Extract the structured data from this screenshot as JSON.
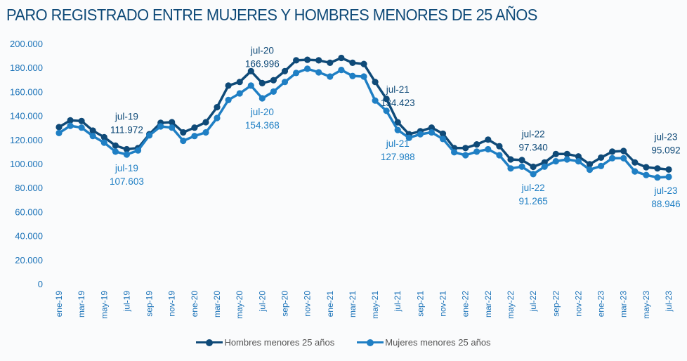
{
  "chart_data": {
    "type": "line",
    "title": "PARO REGISTRADO ENTRE MUJERES Y HOMBRES MENORES DE 25 AÑOS",
    "xlabel": "",
    "ylabel": "",
    "ylim": [
      0,
      200000
    ],
    "yticks": [
      0,
      20000,
      40000,
      60000,
      80000,
      100000,
      120000,
      140000,
      160000,
      180000,
      200000
    ],
    "ytick_labels": [
      "0",
      "20.000",
      "40.000",
      "60.000",
      "80.000",
      "100.000",
      "120.000",
      "140.000",
      "160.000",
      "180.000",
      "200.000"
    ],
    "grid": false,
    "legend_position": "bottom",
    "x": [
      "ene-19",
      "feb-19",
      "mar-19",
      "abr-19",
      "may-19",
      "jun-19",
      "jul-19",
      "ago-19",
      "sep-19",
      "oct-19",
      "nov-19",
      "dic-19",
      "ene-20",
      "feb-20",
      "mar-20",
      "abr-20",
      "may-20",
      "jun-20",
      "jul-20",
      "ago-20",
      "sep-20",
      "oct-20",
      "nov-20",
      "dic-20",
      "ene-21",
      "feb-21",
      "mar-21",
      "abr-21",
      "may-21",
      "jun-21",
      "jul-21",
      "ago-21",
      "sep-21",
      "oct-21",
      "nov-21",
      "dic-21",
      "ene-22",
      "feb-22",
      "mar-22",
      "abr-22",
      "may-22",
      "jun-22",
      "jul-22",
      "ago-22",
      "sep-22",
      "oct-22",
      "nov-22",
      "dic-22",
      "ene-23",
      "feb-23",
      "mar-23",
      "abr-23",
      "may-23",
      "jun-23",
      "jul-23"
    ],
    "xtick_labels": [
      "ene-19",
      "mar-19",
      "may-19",
      "jul-19",
      "sep-19",
      "nov-19",
      "ene-20",
      "mar-20",
      "may-20",
      "jul-20",
      "sep-20",
      "nov-20",
      "ene-21",
      "mar-21",
      "may-21",
      "jul-21",
      "sep-21",
      "nov-21",
      "ene-22",
      "mar-22",
      "may-22",
      "jul-22",
      "sep-22",
      "nov-22",
      "ene-23",
      "mar-23",
      "may-23",
      "jul-23"
    ],
    "series": [
      {
        "name": "Hombres menores 25 años",
        "color": "#0f4a78",
        "values": [
          130400,
          136000,
          135500,
          127500,
          122000,
          115000,
          111972,
          113000,
          124500,
          134000,
          134500,
          126000,
          130000,
          134500,
          147000,
          165000,
          168000,
          177000,
          166996,
          169500,
          177000,
          186000,
          186500,
          186000,
          184000,
          188000,
          184000,
          183000,
          168000,
          154000,
          134423,
          124500,
          127000,
          130000,
          125000,
          113000,
          113000,
          116000,
          120000,
          114500,
          103500,
          103000,
          97340,
          101000,
          108000,
          108000,
          106000,
          99500,
          105000,
          110000,
          110500,
          101000,
          97000,
          96000,
          95092
        ]
      },
      {
        "name": "Mujeres menores 25 años",
        "color": "#1f7fc4",
        "values": [
          125500,
          131500,
          130000,
          123000,
          117500,
          110000,
          107603,
          111000,
          123500,
          131000,
          130000,
          119000,
          123000,
          126000,
          138000,
          153000,
          158500,
          165000,
          154368,
          160000,
          168000,
          175500,
          179000,
          176000,
          172500,
          178000,
          173000,
          172500,
          152500,
          144000,
          127988,
          121500,
          124500,
          126000,
          120500,
          109500,
          107000,
          110000,
          112000,
          107000,
          96000,
          97500,
          91265,
          97500,
          102000,
          103500,
          102000,
          95000,
          98000,
          104500,
          104500,
          93500,
          90500,
          88500,
          88946
        ]
      }
    ],
    "annotations": [
      {
        "series": 0,
        "x": "jul-19",
        "label_date": "jul-19",
        "label_value": "111.972",
        "pos": "above"
      },
      {
        "series": 1,
        "x": "jul-19",
        "label_date": "jul-19",
        "label_value": "107.603",
        "pos": "below"
      },
      {
        "series": 0,
        "x": "jul-20",
        "label_date": "jul-20",
        "label_value": "166.996",
        "pos": "above"
      },
      {
        "series": 1,
        "x": "jul-20",
        "label_date": "jul-20",
        "label_value": "154.368",
        "pos": "below"
      },
      {
        "series": 0,
        "x": "jul-21",
        "label_date": "jul-21",
        "label_value": "134.423",
        "pos": "above"
      },
      {
        "series": 1,
        "x": "jul-21",
        "label_date": "jul-21",
        "label_value": "127.988",
        "pos": "below"
      },
      {
        "series": 0,
        "x": "jul-22",
        "label_date": "jul-22",
        "label_value": "97.340",
        "pos": "above"
      },
      {
        "series": 1,
        "x": "jul-22",
        "label_date": "jul-22",
        "label_value": "91.265",
        "pos": "below"
      },
      {
        "series": 0,
        "x": "jul-23",
        "label_date": "jul-23",
        "label_value": "95.092",
        "pos": "above"
      },
      {
        "series": 1,
        "x": "jul-23",
        "label_date": "jul-23",
        "label_value": "88.946",
        "pos": "below"
      }
    ]
  }
}
